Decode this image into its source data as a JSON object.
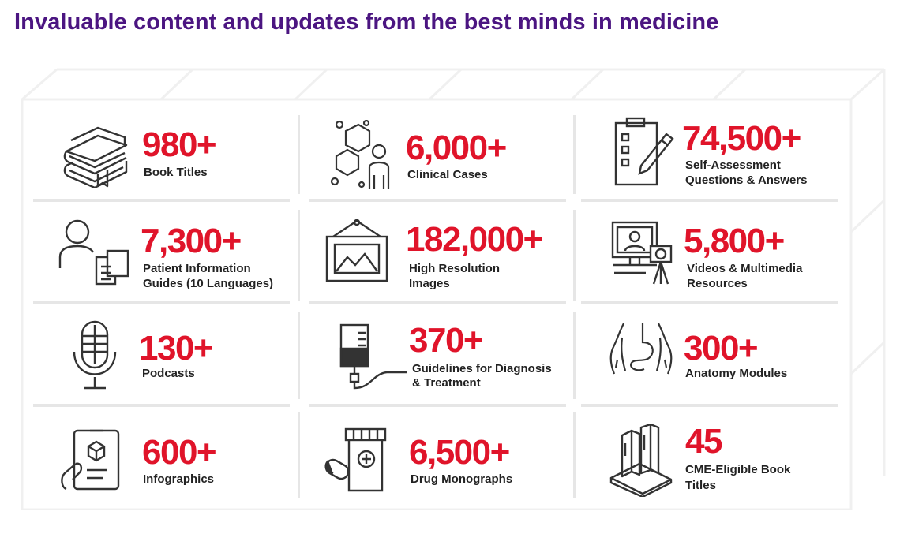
{
  "header": {
    "title": "Invaluable content and updates from the best minds in medicine"
  },
  "colors": {
    "accent_number": "#e0142a",
    "title": "#4b1581",
    "label": "#222222",
    "icon": "#333333"
  },
  "stats": [
    {
      "value": "980+",
      "label_lines": [
        "Book Titles"
      ],
      "icon": "books-icon"
    },
    {
      "value": "6,000+",
      "label_lines": [
        "Clinical Cases"
      ],
      "icon": "clinical-case-icon"
    },
    {
      "value": "74,500+",
      "label_lines": [
        "Self-Assessment",
        "Questions & Answers"
      ],
      "icon": "checklist-pencil-icon"
    },
    {
      "value": "7,300+",
      "label_lines": [
        "Patient Information",
        "Guides (10 Languages)"
      ],
      "icon": "patient-documents-icon"
    },
    {
      "value": "182,000+",
      "label_lines": [
        "High Resolution",
        "Images"
      ],
      "icon": "framed-picture-icon"
    },
    {
      "value": "5,800+",
      "label_lines": [
        "Videos & Multimedia",
        "Resources"
      ],
      "icon": "monitor-camera-icon"
    },
    {
      "value": "130+",
      "label_lines": [
        "Podcasts"
      ],
      "icon": "microphone-icon"
    },
    {
      "value": "370+",
      "label_lines": [
        "Guidelines for Diagnosis",
        "& Treatment"
      ],
      "icon": "iv-bag-icon"
    },
    {
      "value": "300+",
      "label_lines": [
        "Anatomy Modules"
      ],
      "icon": "torso-anatomy-icon"
    },
    {
      "value": "600+",
      "label_lines": [
        "Infographics"
      ],
      "icon": "tablet-hand-icon"
    },
    {
      "value": "6,500+",
      "label_lines": [
        "Drug Monographs"
      ],
      "icon": "pill-bottle-icon"
    },
    {
      "value": "45",
      "label_lines": [
        "CME-Eligible Book",
        "Titles"
      ],
      "icon": "book-stack-icon"
    }
  ]
}
